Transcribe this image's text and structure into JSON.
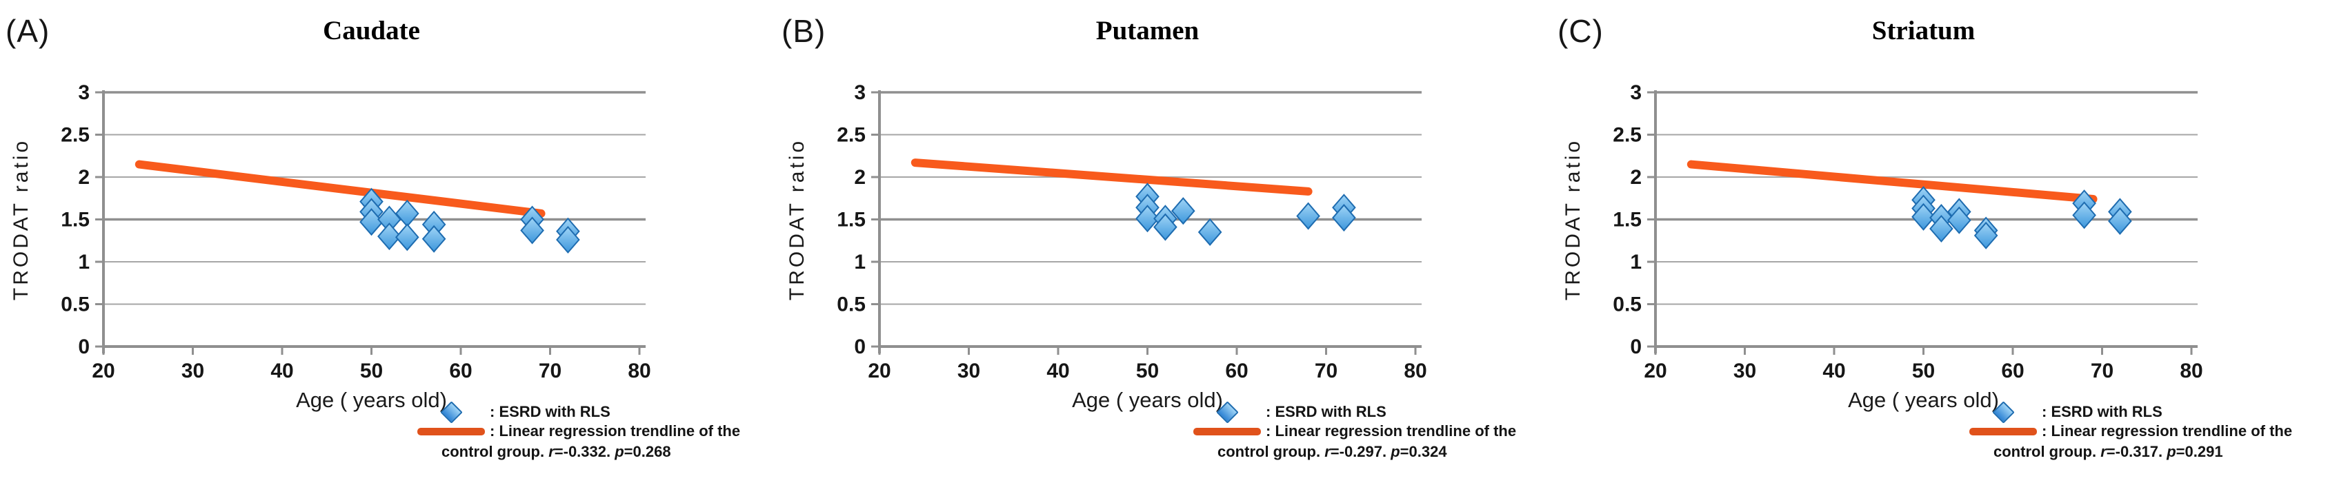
{
  "figure": {
    "panels": [
      {
        "label": "(A)",
        "legend": {
          "marker_label": ": ESRD with RLS",
          "trend_label": ": Linear regression trendline of the",
          "line3": {
            "prefix": "control group. ",
            "r_sym": "r",
            "r_val": "=-0.332. ",
            "p_sym": "p",
            "p_val": "=0.268"
          }
        }
      },
      {
        "label": "(B)",
        "legend": {
          "marker_label": ": ESRD with RLS",
          "trend_label": ": Linear regression trendline of the",
          "line3": {
            "prefix": "control group. ",
            "r_sym": "r",
            "r_val": "=-0.297. ",
            "p_sym": "p",
            "p_val": "=0.324"
          }
        }
      },
      {
        "label": "(C)",
        "legend": {
          "marker_label": ": ESRD with RLS",
          "trend_label": ": Linear regression trendline of the",
          "line3": {
            "prefix": "control group. ",
            "r_sym": "r",
            "r_val": "=-0.317. ",
            "p_sym": "p",
            "p_val": "=0.291"
          }
        }
      }
    ],
    "colors": {
      "marker_fill": "#3d97dc",
      "marker_fill_light": "#9fd4f6",
      "marker_stroke": "#1e6cb0",
      "trendline": "#f85a1c",
      "legend_swatch": "#e0521b",
      "gridline": "#a6a6a6",
      "axis": "#8f8f8f",
      "text": "#1a1a1a"
    }
  },
  "chart_data": [
    {
      "type": "scatter",
      "title": "Caudate",
      "xlabel": "Age ( years old)",
      "ylabel": "TRODAT  ratio",
      "xlim": [
        20,
        80
      ],
      "ylim": [
        0,
        3
      ],
      "xticks": [
        20,
        30,
        40,
        50,
        60,
        70,
        80
      ],
      "yticks": [
        0,
        0.5,
        1,
        1.5,
        2,
        2.5,
        3
      ],
      "heavy_yticks": [
        0,
        1.5,
        3
      ],
      "grid": true,
      "legend_position": "bottom-right",
      "series": [
        {
          "name": "ESRD with RLS",
          "type": "scatter",
          "points": [
            [
              50,
              1.71
            ],
            [
              50,
              1.59
            ],
            [
              50,
              1.47
            ],
            [
              52,
              1.5
            ],
            [
              52,
              1.3
            ],
            [
              54,
              1.57
            ],
            [
              54,
              1.29
            ],
            [
              57,
              1.44
            ],
            [
              57,
              1.27
            ],
            [
              68,
              1.5
            ],
            [
              68,
              1.37
            ],
            [
              72,
              1.36
            ],
            [
              72,
              1.26
            ]
          ]
        },
        {
          "name": "Linear regression trendline of the control group",
          "type": "line",
          "r": -0.332,
          "p": 0.268,
          "points": [
            [
              24,
              2.15
            ],
            [
              69,
              1.57
            ]
          ]
        }
      ]
    },
    {
      "type": "scatter",
      "title": "Putamen",
      "xlabel": "Age ( years old)",
      "ylabel": "TRODAT  ratio",
      "xlim": [
        20,
        80
      ],
      "ylim": [
        0,
        3
      ],
      "xticks": [
        20,
        30,
        40,
        50,
        60,
        70,
        80
      ],
      "yticks": [
        0,
        0.5,
        1,
        1.5,
        2,
        2.5,
        3
      ],
      "heavy_yticks": [
        0,
        1.5,
        3
      ],
      "grid": true,
      "legend_position": "bottom-right",
      "series": [
        {
          "name": "ESRD with RLS",
          "type": "scatter",
          "points": [
            [
              50,
              1.77
            ],
            [
              50,
              1.64
            ],
            [
              50,
              1.51
            ],
            [
              52,
              1.51
            ],
            [
              52,
              1.41
            ],
            [
              54,
              1.6
            ],
            [
              57,
              1.35
            ],
            [
              68,
              1.54
            ],
            [
              72,
              1.64
            ],
            [
              72,
              1.52
            ]
          ]
        },
        {
          "name": "Linear regression trendline of the control group",
          "type": "line",
          "r": -0.297,
          "p": 0.324,
          "points": [
            [
              24,
              2.17
            ],
            [
              68,
              1.83
            ]
          ]
        }
      ]
    },
    {
      "type": "scatter",
      "title": "Striatum",
      "xlabel": "Age ( years old)",
      "ylabel": "TRODAT  ratio",
      "xlim": [
        20,
        80
      ],
      "ylim": [
        0,
        3
      ],
      "xticks": [
        20,
        30,
        40,
        50,
        60,
        70,
        80
      ],
      "yticks": [
        0,
        0.5,
        1,
        1.5,
        2,
        2.5,
        3
      ],
      "heavy_yticks": [
        0,
        1.5,
        3
      ],
      "grid": true,
      "legend_position": "bottom-right",
      "series": [
        {
          "name": "ESRD with RLS",
          "type": "scatter",
          "points": [
            [
              50,
              1.73
            ],
            [
              50,
              1.63
            ],
            [
              50,
              1.53
            ],
            [
              52,
              1.52
            ],
            [
              52,
              1.39
            ],
            [
              54,
              1.59
            ],
            [
              54,
              1.49
            ],
            [
              57,
              1.37
            ],
            [
              57,
              1.31
            ],
            [
              68,
              1.69
            ],
            [
              68,
              1.55
            ],
            [
              72,
              1.59
            ],
            [
              72,
              1.48
            ]
          ]
        },
        {
          "name": "Linear regression trendline of the control group",
          "type": "line",
          "r": -0.317,
          "p": 0.291,
          "points": [
            [
              24,
              2.15
            ],
            [
              69,
              1.74
            ]
          ]
        }
      ]
    }
  ]
}
